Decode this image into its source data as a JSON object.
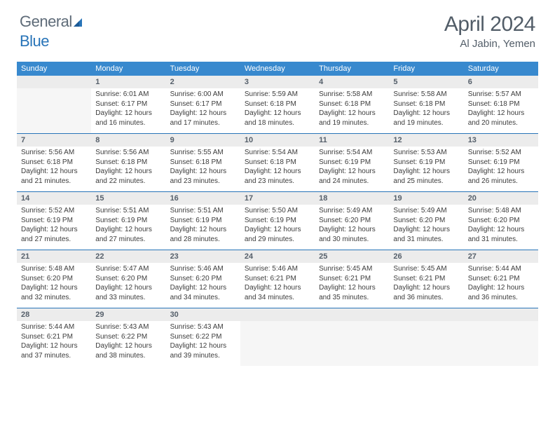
{
  "brand": {
    "part1": "General",
    "part2": "Blue"
  },
  "title": "April 2024",
  "location": "Al Jabin, Yemen",
  "colors": {
    "header_bg": "#3889ce",
    "header_text": "#ffffff",
    "daynum_bg": "#ececec",
    "rule": "#2874b8",
    "text": "#3c3c3c",
    "muted": "#525d68",
    "logo_gray": "#5e6b78",
    "logo_blue": "#2874b8"
  },
  "day_headers": [
    "Sunday",
    "Monday",
    "Tuesday",
    "Wednesday",
    "Thursday",
    "Friday",
    "Saturday"
  ],
  "weeks": [
    {
      "nums": [
        "",
        "1",
        "2",
        "3",
        "4",
        "5",
        "6"
      ],
      "cells": [
        null,
        {
          "sunrise": "6:01 AM",
          "sunset": "6:17 PM",
          "daylight": "12 hours and 16 minutes."
        },
        {
          "sunrise": "6:00 AM",
          "sunset": "6:17 PM",
          "daylight": "12 hours and 17 minutes."
        },
        {
          "sunrise": "5:59 AM",
          "sunset": "6:18 PM",
          "daylight": "12 hours and 18 minutes."
        },
        {
          "sunrise": "5:58 AM",
          "sunset": "6:18 PM",
          "daylight": "12 hours and 19 minutes."
        },
        {
          "sunrise": "5:58 AM",
          "sunset": "6:18 PM",
          "daylight": "12 hours and 19 minutes."
        },
        {
          "sunrise": "5:57 AM",
          "sunset": "6:18 PM",
          "daylight": "12 hours and 20 minutes."
        }
      ]
    },
    {
      "nums": [
        "7",
        "8",
        "9",
        "10",
        "11",
        "12",
        "13"
      ],
      "cells": [
        {
          "sunrise": "5:56 AM",
          "sunset": "6:18 PM",
          "daylight": "12 hours and 21 minutes."
        },
        {
          "sunrise": "5:56 AM",
          "sunset": "6:18 PM",
          "daylight": "12 hours and 22 minutes."
        },
        {
          "sunrise": "5:55 AM",
          "sunset": "6:18 PM",
          "daylight": "12 hours and 23 minutes."
        },
        {
          "sunrise": "5:54 AM",
          "sunset": "6:18 PM",
          "daylight": "12 hours and 23 minutes."
        },
        {
          "sunrise": "5:54 AM",
          "sunset": "6:19 PM",
          "daylight": "12 hours and 24 minutes."
        },
        {
          "sunrise": "5:53 AM",
          "sunset": "6:19 PM",
          "daylight": "12 hours and 25 minutes."
        },
        {
          "sunrise": "5:52 AM",
          "sunset": "6:19 PM",
          "daylight": "12 hours and 26 minutes."
        }
      ]
    },
    {
      "nums": [
        "14",
        "15",
        "16",
        "17",
        "18",
        "19",
        "20"
      ],
      "cells": [
        {
          "sunrise": "5:52 AM",
          "sunset": "6:19 PM",
          "daylight": "12 hours and 27 minutes."
        },
        {
          "sunrise": "5:51 AM",
          "sunset": "6:19 PM",
          "daylight": "12 hours and 27 minutes."
        },
        {
          "sunrise": "5:51 AM",
          "sunset": "6:19 PM",
          "daylight": "12 hours and 28 minutes."
        },
        {
          "sunrise": "5:50 AM",
          "sunset": "6:19 PM",
          "daylight": "12 hours and 29 minutes."
        },
        {
          "sunrise": "5:49 AM",
          "sunset": "6:20 PM",
          "daylight": "12 hours and 30 minutes."
        },
        {
          "sunrise": "5:49 AM",
          "sunset": "6:20 PM",
          "daylight": "12 hours and 31 minutes."
        },
        {
          "sunrise": "5:48 AM",
          "sunset": "6:20 PM",
          "daylight": "12 hours and 31 minutes."
        }
      ]
    },
    {
      "nums": [
        "21",
        "22",
        "23",
        "24",
        "25",
        "26",
        "27"
      ],
      "cells": [
        {
          "sunrise": "5:48 AM",
          "sunset": "6:20 PM",
          "daylight": "12 hours and 32 minutes."
        },
        {
          "sunrise": "5:47 AM",
          "sunset": "6:20 PM",
          "daylight": "12 hours and 33 minutes."
        },
        {
          "sunrise": "5:46 AM",
          "sunset": "6:20 PM",
          "daylight": "12 hours and 34 minutes."
        },
        {
          "sunrise": "5:46 AM",
          "sunset": "6:21 PM",
          "daylight": "12 hours and 34 minutes."
        },
        {
          "sunrise": "5:45 AM",
          "sunset": "6:21 PM",
          "daylight": "12 hours and 35 minutes."
        },
        {
          "sunrise": "5:45 AM",
          "sunset": "6:21 PM",
          "daylight": "12 hours and 36 minutes."
        },
        {
          "sunrise": "5:44 AM",
          "sunset": "6:21 PM",
          "daylight": "12 hours and 36 minutes."
        }
      ]
    },
    {
      "nums": [
        "28",
        "29",
        "30",
        "",
        "",
        "",
        ""
      ],
      "cells": [
        {
          "sunrise": "5:44 AM",
          "sunset": "6:21 PM",
          "daylight": "12 hours and 37 minutes."
        },
        {
          "sunrise": "5:43 AM",
          "sunset": "6:22 PM",
          "daylight": "12 hours and 38 minutes."
        },
        {
          "sunrise": "5:43 AM",
          "sunset": "6:22 PM",
          "daylight": "12 hours and 39 minutes."
        },
        null,
        null,
        null,
        null
      ]
    }
  ],
  "labels": {
    "sunrise": "Sunrise:",
    "sunset": "Sunset:",
    "daylight": "Daylight:"
  }
}
